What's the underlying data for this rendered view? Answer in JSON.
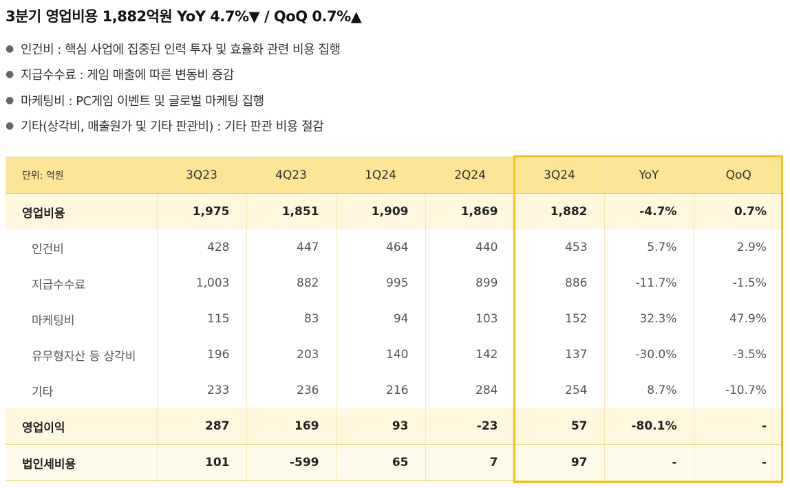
{
  "title": "3분기 영업비용 1,882억원 YoY 4.7%▼ / QoQ 0.7%▲",
  "bullets": [
    "인건비 : 핵심 사업에 집중된 인력 투자 및 효율화 관련 비용 집행",
    "지급수수료 : 게임 매출에 따른 변동비 증감",
    "마케팅비 : PC게임 이벤트 및 글로벌 마케팅 집행",
    "기타(상각비, 매출원가 및 기타 판관비) : 기타 판관 비용 절감"
  ],
  "table": {
    "unit": "단위: 억원",
    "columns": [
      "3Q23",
      "4Q23",
      "1Q24",
      "2Q24",
      "3Q24",
      "YoY",
      "QoQ"
    ],
    "rows": [
      {
        "label": "영업비용",
        "values": [
          "1,975",
          "1,851",
          "1,909",
          "1,869",
          "1,882",
          "-4.7%",
          "0.7%"
        ]
      },
      {
        "label": "인건비",
        "values": [
          "428",
          "447",
          "464",
          "440",
          "453",
          "5.7%",
          "2.9%"
        ]
      },
      {
        "label": "지급수수료",
        "values": [
          "1,003",
          "882",
          "995",
          "899",
          "886",
          "-11.7%",
          "-1.5%"
        ]
      },
      {
        "label": "마케팅비",
        "values": [
          "115",
          "83",
          "94",
          "103",
          "152",
          "32.3%",
          "47.9%"
        ]
      },
      {
        "label": "유무형자산 등 상각비",
        "values": [
          "196",
          "203",
          "140",
          "142",
          "137",
          "-30.0%",
          "-3.5%"
        ]
      },
      {
        "label": "기타",
        "values": [
          "233",
          "236",
          "216",
          "284",
          "254",
          "8.7%",
          "-10.7%"
        ]
      },
      {
        "label": "영업이익",
        "values": [
          "287",
          "169",
          "93",
          "-23",
          "57",
          "-80.1%",
          "-"
        ]
      },
      {
        "label": "법인세비용",
        "values": [
          "101",
          "-599",
          "65",
          "7",
          "97",
          "-",
          "-"
        ]
      }
    ]
  },
  "colors": {
    "header_bg": "#fbe697",
    "highlight_border": "#f2c21b",
    "bold_row_bg": "#fff8df"
  }
}
